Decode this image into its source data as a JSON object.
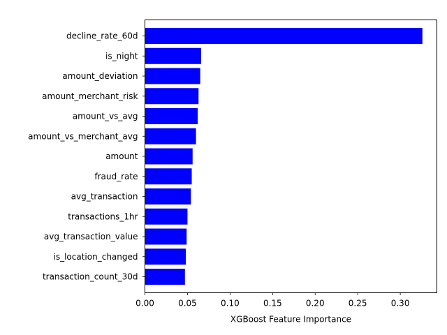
{
  "chart_data": {
    "type": "bar",
    "orientation": "horizontal",
    "categories": [
      "decline_rate_60d",
      "is_night",
      "amount_deviation",
      "amount_merchant_risk",
      "amount_vs_avg",
      "amount_vs_merchant_avg",
      "amount",
      "fraud_rate",
      "avg_transaction",
      "transactions_1hr",
      "avg_transaction_value",
      "is_location_changed",
      "transaction_count_30d"
    ],
    "values": [
      0.326,
      0.066,
      0.065,
      0.063,
      0.062,
      0.06,
      0.056,
      0.055,
      0.054,
      0.05,
      0.049,
      0.048,
      0.047
    ],
    "xlabel": "XGBoost Feature Importance",
    "ylabel": "",
    "title": "",
    "xlim": [
      0,
      0.343
    ],
    "xticks": [
      0.0,
      0.05,
      0.1,
      0.15,
      0.2,
      0.25,
      0.3
    ],
    "xtick_labels": [
      "0.00",
      "0.05",
      "0.10",
      "0.15",
      "0.20",
      "0.25",
      "0.30"
    ],
    "bar_color": "#0000ff",
    "grid": false,
    "legend": "none"
  }
}
